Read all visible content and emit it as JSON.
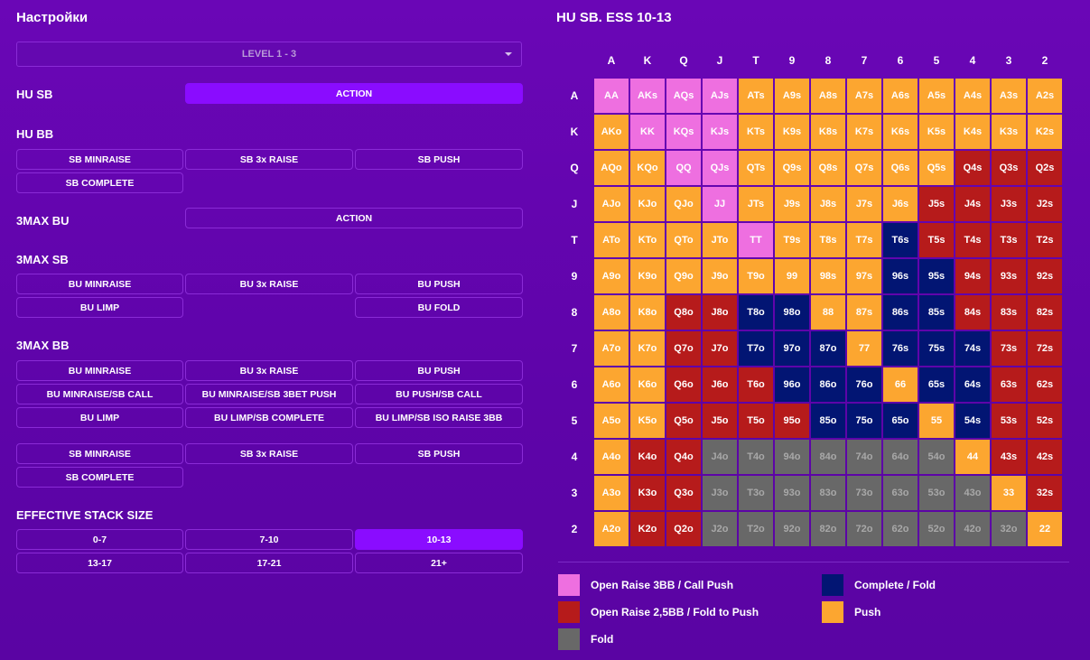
{
  "settings": {
    "title": "Настройки",
    "level_select": "LEVEL 1 - 3",
    "hu_sb": {
      "label": "HU SB",
      "action": "ACTION"
    },
    "hu_bb": {
      "label": "HU BB",
      "buttons": [
        "SB MINRAISE",
        "SB 3x RAISE",
        "SB PUSH",
        "SB COMPLETE"
      ]
    },
    "max3_bu": {
      "label": "3MAX BU",
      "action": "ACTION"
    },
    "max3_sb": {
      "label": "3MAX SB",
      "buttons": [
        "BU MINRAISE",
        "BU 3x RAISE",
        "BU PUSH",
        "BU LIMP",
        "BU FOLD"
      ]
    },
    "max3_bb": {
      "label": "3MAX BB",
      "buttons": [
        "BU MINRAISE",
        "BU 3x RAISE",
        "BU PUSH",
        "BU MINRAISE/SB CALL",
        "BU MINRAISE/SB 3BET PUSH",
        "BU PUSH/SB CALL",
        "BU LIMP",
        "BU LIMP/SB COMPLETE",
        "BU LIMP/SB ISO RAISE 3BB"
      ],
      "buttons2": [
        "SB MINRAISE",
        "SB 3x RAISE",
        "SB PUSH",
        "SB COMPLETE"
      ]
    },
    "stack": {
      "label": "EFFECTIVE STACK SIZE",
      "options": [
        "0-7",
        "7-10",
        "10-13",
        "13-17",
        "17-21",
        "21+"
      ],
      "selected": "10-13"
    }
  },
  "chart": {
    "title": "HU SB. ESS 10-13",
    "ranks": [
      "A",
      "K",
      "Q",
      "J",
      "T",
      "9",
      "8",
      "7",
      "6",
      "5",
      "4",
      "3",
      "2"
    ],
    "actions": [
      "P",
      "Y",
      "O",
      "R",
      "N",
      "G"
    ],
    "grid": [
      "PPPPYYYYYYYYY",
      "YPPPYYYYYYYYY",
      "YYPPYYYYYYRRR",
      "YYYPYYYYYRRRR",
      "YYYYPYYYNRRRR",
      "YYYYYYYYNNRRR",
      "YYRRNNYYNNRRR",
      "YYRRNNNYNNNRR",
      "YYRRRNNNYNNRR",
      "YYRRRRNNNYNRR",
      "YRRGGGGGGGYRR",
      "YRRGGGGGGGGYR",
      "YRRGGGGGGGGGY"
    ]
  },
  "colors": {
    "P": "#ee6fe0",
    "Y": "#fca630",
    "R": "#b61b1b",
    "N": "#021573",
    "G": "#686868",
    "gray_text": "#a8a8a8",
    "accent": "#8a0cff"
  },
  "legend": [
    {
      "code": "P",
      "label": "Open Raise 3BB / Call Push"
    },
    {
      "code": "N",
      "label": "Complete / Fold"
    },
    {
      "code": "R",
      "label": "Open Raise 2,5BB / Fold to Push"
    },
    {
      "code": "Y",
      "label": "Push"
    },
    {
      "code": "G",
      "label": "Fold"
    }
  ]
}
